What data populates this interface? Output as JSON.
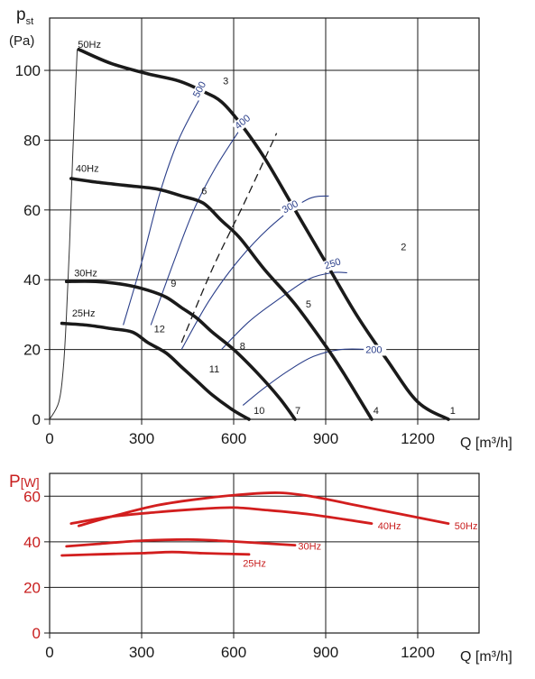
{
  "chart_data": [
    {
      "type": "line",
      "title": "",
      "ylabel_main": "p",
      "ylabel_sub": "st",
      "ylabel_unit": "(Pa)",
      "xlabel": "Q [m³/h]",
      "xlim": [
        0,
        1400
      ],
      "ylim": [
        0,
        115
      ],
      "x_ticks": [
        0,
        300,
        600,
        900,
        1200
      ],
      "y_ticks": [
        0,
        20,
        40,
        60,
        80,
        100
      ],
      "grid": true,
      "fan_curves": [
        {
          "name": "50Hz",
          "points": [
            [
              95,
              106
            ],
            [
              200,
              102
            ],
            [
              320,
              99
            ],
            [
              420,
              97
            ],
            [
              500,
              94
            ],
            [
              560,
              91
            ],
            [
              620,
              85
            ],
            [
              700,
              75
            ],
            [
              800,
              60
            ],
            [
              900,
              45
            ],
            [
              1000,
              30
            ],
            [
              1100,
              17
            ],
            [
              1200,
              5
            ],
            [
              1300,
              0
            ]
          ]
        },
        {
          "name": "40Hz",
          "points": [
            [
              70,
              69
            ],
            [
              150,
              68
            ],
            [
              250,
              67
            ],
            [
              350,
              66
            ],
            [
              430,
              64
            ],
            [
              500,
              62
            ],
            [
              560,
              57
            ],
            [
              620,
              52
            ],
            [
              700,
              43
            ],
            [
              800,
              33
            ],
            [
              900,
              21
            ],
            [
              960,
              13
            ],
            [
              1050,
              0
            ]
          ]
        },
        {
          "name": "30Hz",
          "points": [
            [
              55,
              39.5
            ],
            [
              150,
              39.5
            ],
            [
              250,
              38.5
            ],
            [
              320,
              37
            ],
            [
              380,
              35
            ],
            [
              430,
              32
            ],
            [
              480,
              29
            ],
            [
              530,
              25
            ],
            [
              600,
              20
            ],
            [
              680,
              13
            ],
            [
              750,
              6
            ],
            [
              800,
              0
            ]
          ]
        },
        {
          "name": "25Hz",
          "points": [
            [
              40,
              27.5
            ],
            [
              120,
              27
            ],
            [
              200,
              26
            ],
            [
              270,
              25
            ],
            [
              320,
              22
            ],
            [
              380,
              19
            ],
            [
              430,
              15
            ],
            [
              480,
              11
            ],
            [
              530,
              7
            ],
            [
              600,
              2.5
            ],
            [
              650,
              0
            ]
          ]
        }
      ],
      "system_curves": [
        {
          "name": "500",
          "points": [
            [
              240,
              27
            ],
            [
              300,
              45
            ],
            [
              360,
              65
            ],
            [
              420,
              80
            ],
            [
              490,
              92
            ]
          ]
        },
        {
          "name": "400",
          "points": [
            [
              330,
              27
            ],
            [
              400,
              44
            ],
            [
              470,
              60
            ],
            [
              540,
              72
            ],
            [
              620,
              83
            ]
          ]
        },
        {
          "name": "300",
          "points": [
            [
              430,
              20
            ],
            [
              520,
              34
            ],
            [
              620,
              46
            ],
            [
              730,
              56
            ],
            [
              840,
              63
            ],
            [
              910,
              64
            ]
          ]
        },
        {
          "name": "250",
          "points": [
            [
              560,
              20
            ],
            [
              650,
              28
            ],
            [
              740,
              34
            ],
            [
              840,
              40
            ],
            [
              920,
              42
            ],
            [
              970,
              42
            ]
          ]
        },
        {
          "name": "200",
          "points": [
            [
              630,
              4
            ],
            [
              700,
              9
            ],
            [
              780,
              14
            ],
            [
              860,
              18
            ],
            [
              950,
              20
            ],
            [
              1050,
              20
            ]
          ]
        }
      ],
      "dashed_curve": {
        "points": [
          [
            430,
            22
          ],
          [
            530,
            43
          ],
          [
            640,
            63
          ],
          [
            740,
            82
          ]
        ]
      },
      "start_curve": {
        "points": [
          [
            0,
            0
          ],
          [
            30,
            5
          ],
          [
            45,
            15
          ],
          [
            55,
            30
          ],
          [
            65,
            50
          ],
          [
            75,
            75
          ],
          [
            90,
            106
          ]
        ]
      },
      "curve_labels": {
        "fan": [
          "50Hz",
          "40Hz",
          "30Hz",
          "25Hz"
        ],
        "system": [
          "500",
          "400",
          "300",
          "250",
          "200"
        ],
        "points": [
          "1",
          "2",
          "3",
          "4",
          "5",
          "6",
          "7",
          "8",
          "9",
          "10",
          "11",
          "12"
        ]
      }
    },
    {
      "type": "line",
      "title": "",
      "ylabel_main": "P",
      "ylabel_unit": "[W]",
      "xlabel": "Q [m³/h]",
      "xlim": [
        0,
        1400
      ],
      "ylim": [
        0,
        70
      ],
      "x_ticks": [
        0,
        300,
        600,
        900,
        1200
      ],
      "y_ticks": [
        0,
        20,
        40,
        60
      ],
      "grid": true,
      "color": "#d21e1e",
      "series": [
        {
          "name": "50Hz",
          "points": [
            [
              95,
              47
            ],
            [
              200,
              51
            ],
            [
              350,
              56
            ],
            [
              500,
              59
            ],
            [
              650,
              61
            ],
            [
              750,
              61.5
            ],
            [
              850,
              60
            ],
            [
              1000,
              56
            ],
            [
              1150,
              52
            ],
            [
              1300,
              48
            ]
          ]
        },
        {
          "name": "40Hz",
          "points": [
            [
              70,
              48
            ],
            [
              200,
              51
            ],
            [
              350,
              53
            ],
            [
              500,
              54.5
            ],
            [
              600,
              55
            ],
            [
              700,
              54
            ],
            [
              850,
              52
            ],
            [
              1050,
              48
            ]
          ]
        },
        {
          "name": "30Hz",
          "points": [
            [
              55,
              38
            ],
            [
              150,
              39
            ],
            [
              300,
              40.5
            ],
            [
              450,
              41
            ],
            [
              550,
              40.5
            ],
            [
              680,
              39.5
            ],
            [
              800,
              38.5
            ]
          ]
        },
        {
          "name": "25Hz",
          "points": [
            [
              40,
              34
            ],
            [
              150,
              34.5
            ],
            [
              300,
              35
            ],
            [
              400,
              35.5
            ],
            [
              500,
              35
            ],
            [
              650,
              34.5
            ]
          ]
        }
      ]
    }
  ]
}
